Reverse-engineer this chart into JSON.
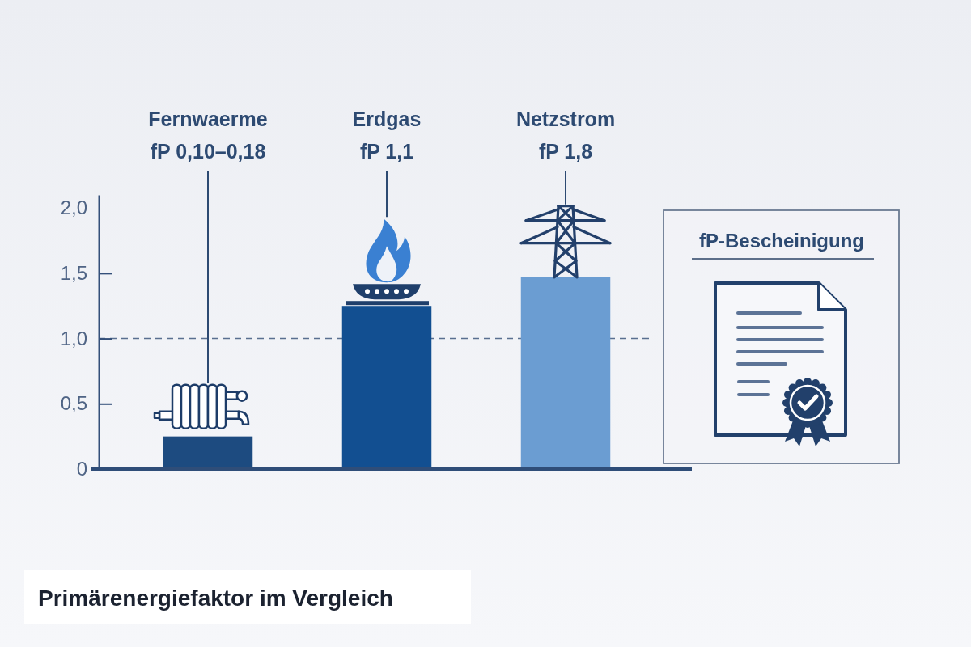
{
  "chart_data": [
    {
      "type": "bar",
      "title": "Primärenergiefaktor im Vergleich",
      "categories": [
        "Fernwaerme",
        "Erdgas",
        "Netzstrom"
      ],
      "values": [
        0.25,
        1.25,
        1.47
      ],
      "colors": [
        "#1d4b80",
        "#124f91",
        "#6b9dd2"
      ],
      "ylim": [
        0,
        2.1
      ],
      "yticks": [
        0,
        {
          "value": 0.5,
          "label": "0,5"
        },
        {
          "value": 1,
          "label": "1,0"
        },
        {
          "value": 1.5,
          "label": "1,5"
        },
        {
          "value": 2,
          "label": "2,0"
        }
      ],
      "ref_lines": [
        {
          "axis": "y",
          "value": 1,
          "color": "#5a6f90",
          "line_style": "dashed"
        }
      ],
      "annotations": [
        {
          "text": "fP 0,10–0,18",
          "x": "Fernwaerme"
        },
        {
          "text": "fP 1,1",
          "x": "Erdgas"
        },
        {
          "text": "fP 1,8",
          "x": "Netzstrom"
        }
      ]
    },
    {
      "type": "other",
      "title": "fP-Bescheinigung"
    }
  ]
}
